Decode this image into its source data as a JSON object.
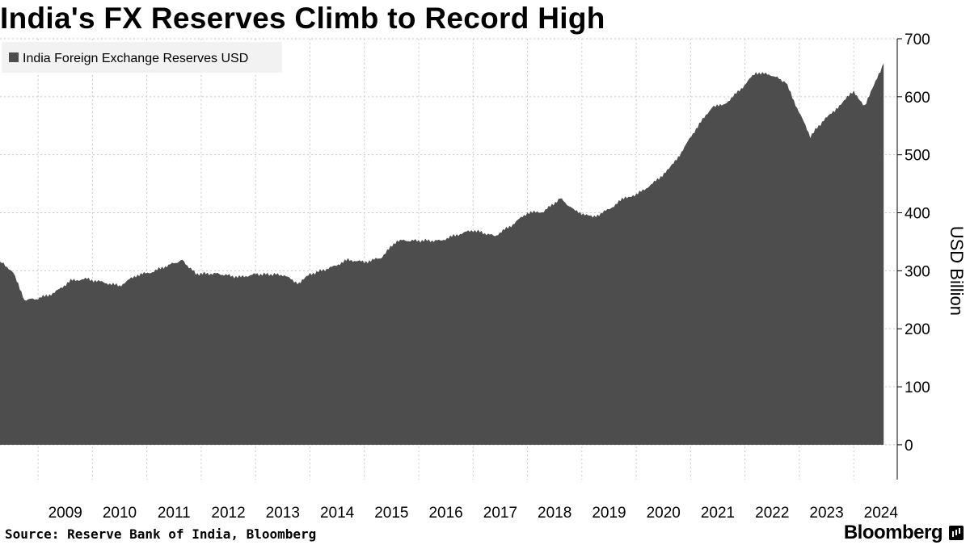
{
  "title": "India's FX Reserves Climb to Record High",
  "source": "Source: Reserve Bank of India, Bloomberg",
  "brand": "Bloomberg",
  "chart_data": {
    "type": "area",
    "title": "India's FX Reserves Climb to Record High",
    "ylabel": "USD Billion",
    "xlabel": "",
    "legend": {
      "position": "top-left",
      "entries": [
        "India Foreign Exchange Reserves USD"
      ]
    },
    "ylim": [
      -60,
      700
    ],
    "yticks": [
      0,
      100,
      200,
      300,
      400,
      500,
      600,
      700
    ],
    "xlim": [
      2008.3,
      2024.8
    ],
    "xticks": [
      2009,
      2010,
      2011,
      2012,
      2013,
      2014,
      2015,
      2016,
      2017,
      2018,
      2019,
      2020,
      2021,
      2022,
      2023,
      2024
    ],
    "grid": true,
    "colors": {
      "area": "#4d4d4d",
      "grid": "#c8c8c8",
      "legend_bg": "#f2f2f2"
    },
    "series": [
      {
        "name": "India Foreign Exchange Reserves USD",
        "x": [
          2008.3,
          2008.4,
          2008.55,
          2008.75,
          2009.0,
          2009.3,
          2009.6,
          2009.9,
          2010.2,
          2010.5,
          2010.8,
          2011.1,
          2011.4,
          2011.65,
          2011.9,
          2012.3,
          2012.7,
          2013.0,
          2013.25,
          2013.5,
          2013.8,
          2014.0,
          2014.4,
          2014.7,
          2015.0,
          2015.3,
          2015.6,
          2016.0,
          2016.4,
          2016.7,
          2017.0,
          2017.4,
          2017.7,
          2018.0,
          2018.3,
          2018.6,
          2018.85,
          2019.2,
          2019.5,
          2019.8,
          2020.0,
          2020.3,
          2020.6,
          2020.8,
          2021.1,
          2021.4,
          2021.6,
          2021.9,
          2022.2,
          2022.5,
          2022.75,
          2022.9,
          2023.2,
          2023.45,
          2023.65,
          2023.85,
          2024.0,
          2024.2,
          2024.4,
          2024.55
        ],
        "y": [
          315,
          310,
          295,
          250,
          252,
          262,
          283,
          286,
          280,
          274,
          292,
          298,
          310,
          318,
          295,
          295,
          289,
          294,
          294,
          293,
          278,
          294,
          306,
          319,
          315,
          322,
          352,
          352,
          352,
          362,
          370,
          360,
          378,
          400,
          402,
          425,
          405,
          392,
          406,
          427,
          431,
          450,
          475,
          500,
          545,
          583,
          585,
          611,
          642,
          637,
          625,
          593,
          532,
          560,
          575,
          598,
          608,
          585,
          625,
          658
        ]
      }
    ]
  }
}
